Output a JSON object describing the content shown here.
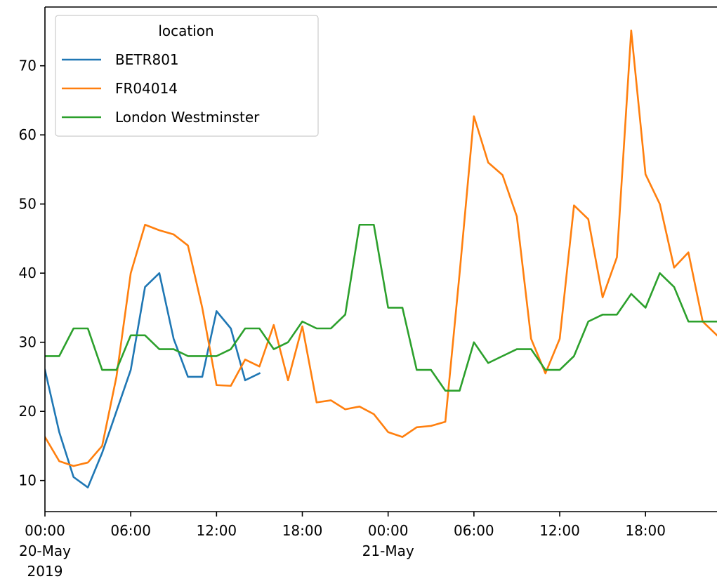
{
  "chart_data": {
    "type": "line",
    "title": "",
    "xlabel": "",
    "ylabel": "",
    "x_start": "2019-05-20T00:00",
    "x_step_hours": 1,
    "xlim": [
      "2019-05-20T00:00",
      "2019-05-21T23:00"
    ],
    "ylim": [
      5.5,
      78.5
    ],
    "y_ticks": [
      10,
      20,
      30,
      40,
      50,
      60,
      70
    ],
    "x_ticks": [
      {
        "x": "2019-05-20T00:00",
        "label": [
          "00:00",
          "20-May",
          "2019"
        ]
      },
      {
        "x": "2019-05-20T06:00",
        "label": [
          "06:00"
        ]
      },
      {
        "x": "2019-05-20T12:00",
        "label": [
          "12:00"
        ]
      },
      {
        "x": "2019-05-20T18:00",
        "label": [
          "18:00"
        ]
      },
      {
        "x": "2019-05-21T00:00",
        "label": [
          "00:00",
          "21-May"
        ]
      },
      {
        "x": "2019-05-21T06:00",
        "label": [
          "06:00"
        ]
      },
      {
        "x": "2019-05-21T12:00",
        "label": [
          "12:00"
        ]
      },
      {
        "x": "2019-05-21T18:00",
        "label": [
          "18:00"
        ]
      }
    ],
    "grid": false,
    "legend": {
      "title": "location",
      "position": "upper-left"
    },
    "series": [
      {
        "name": "BETR801",
        "color": "#1f77b4",
        "values": [
          26.0,
          17.0,
          10.5,
          9.0,
          14.0,
          20.0,
          26.0,
          38.0,
          40.0,
          30.5,
          25.0,
          25.0,
          34.5,
          32.0,
          24.5,
          25.5
        ]
      },
      {
        "name": "FR04014",
        "color": "#ff7f0e",
        "values": [
          16.3,
          12.8,
          12.1,
          12.6,
          15.0,
          25.0,
          40.0,
          47.0,
          46.2,
          45.6,
          44.0,
          35.0,
          23.8,
          23.7,
          27.5,
          26.5,
          32.5,
          24.5,
          32.3,
          21.3,
          21.6,
          20.3,
          20.7,
          19.6,
          17.0,
          16.3,
          17.7,
          17.9,
          18.5,
          40.0,
          62.7,
          56.0,
          54.2,
          48.2,
          30.5,
          25.5,
          30.5,
          49.8,
          47.8,
          36.5,
          42.3,
          75.1,
          54.3,
          50.0,
          40.8,
          43.0,
          33.0,
          31.0
        ]
      },
      {
        "name": "London Westminster",
        "color": "#2ca02c",
        "values": [
          28.0,
          28.0,
          32.0,
          32.0,
          26.0,
          26.0,
          31.0,
          31.0,
          29.0,
          29.0,
          28.0,
          28.0,
          28.0,
          29.0,
          32.0,
          32.0,
          29.0,
          30.0,
          33.0,
          32.0,
          32.0,
          34.0,
          47.0,
          47.0,
          35.0,
          35.0,
          26.0,
          26.0,
          23.0,
          23.0,
          30.0,
          27.0,
          28.0,
          29.0,
          29.0,
          26.0,
          26.0,
          28.0,
          33.0,
          34.0,
          34.0,
          37.0,
          35.0,
          40.0,
          38.0,
          33.0,
          33.0,
          33.0
        ]
      }
    ]
  }
}
